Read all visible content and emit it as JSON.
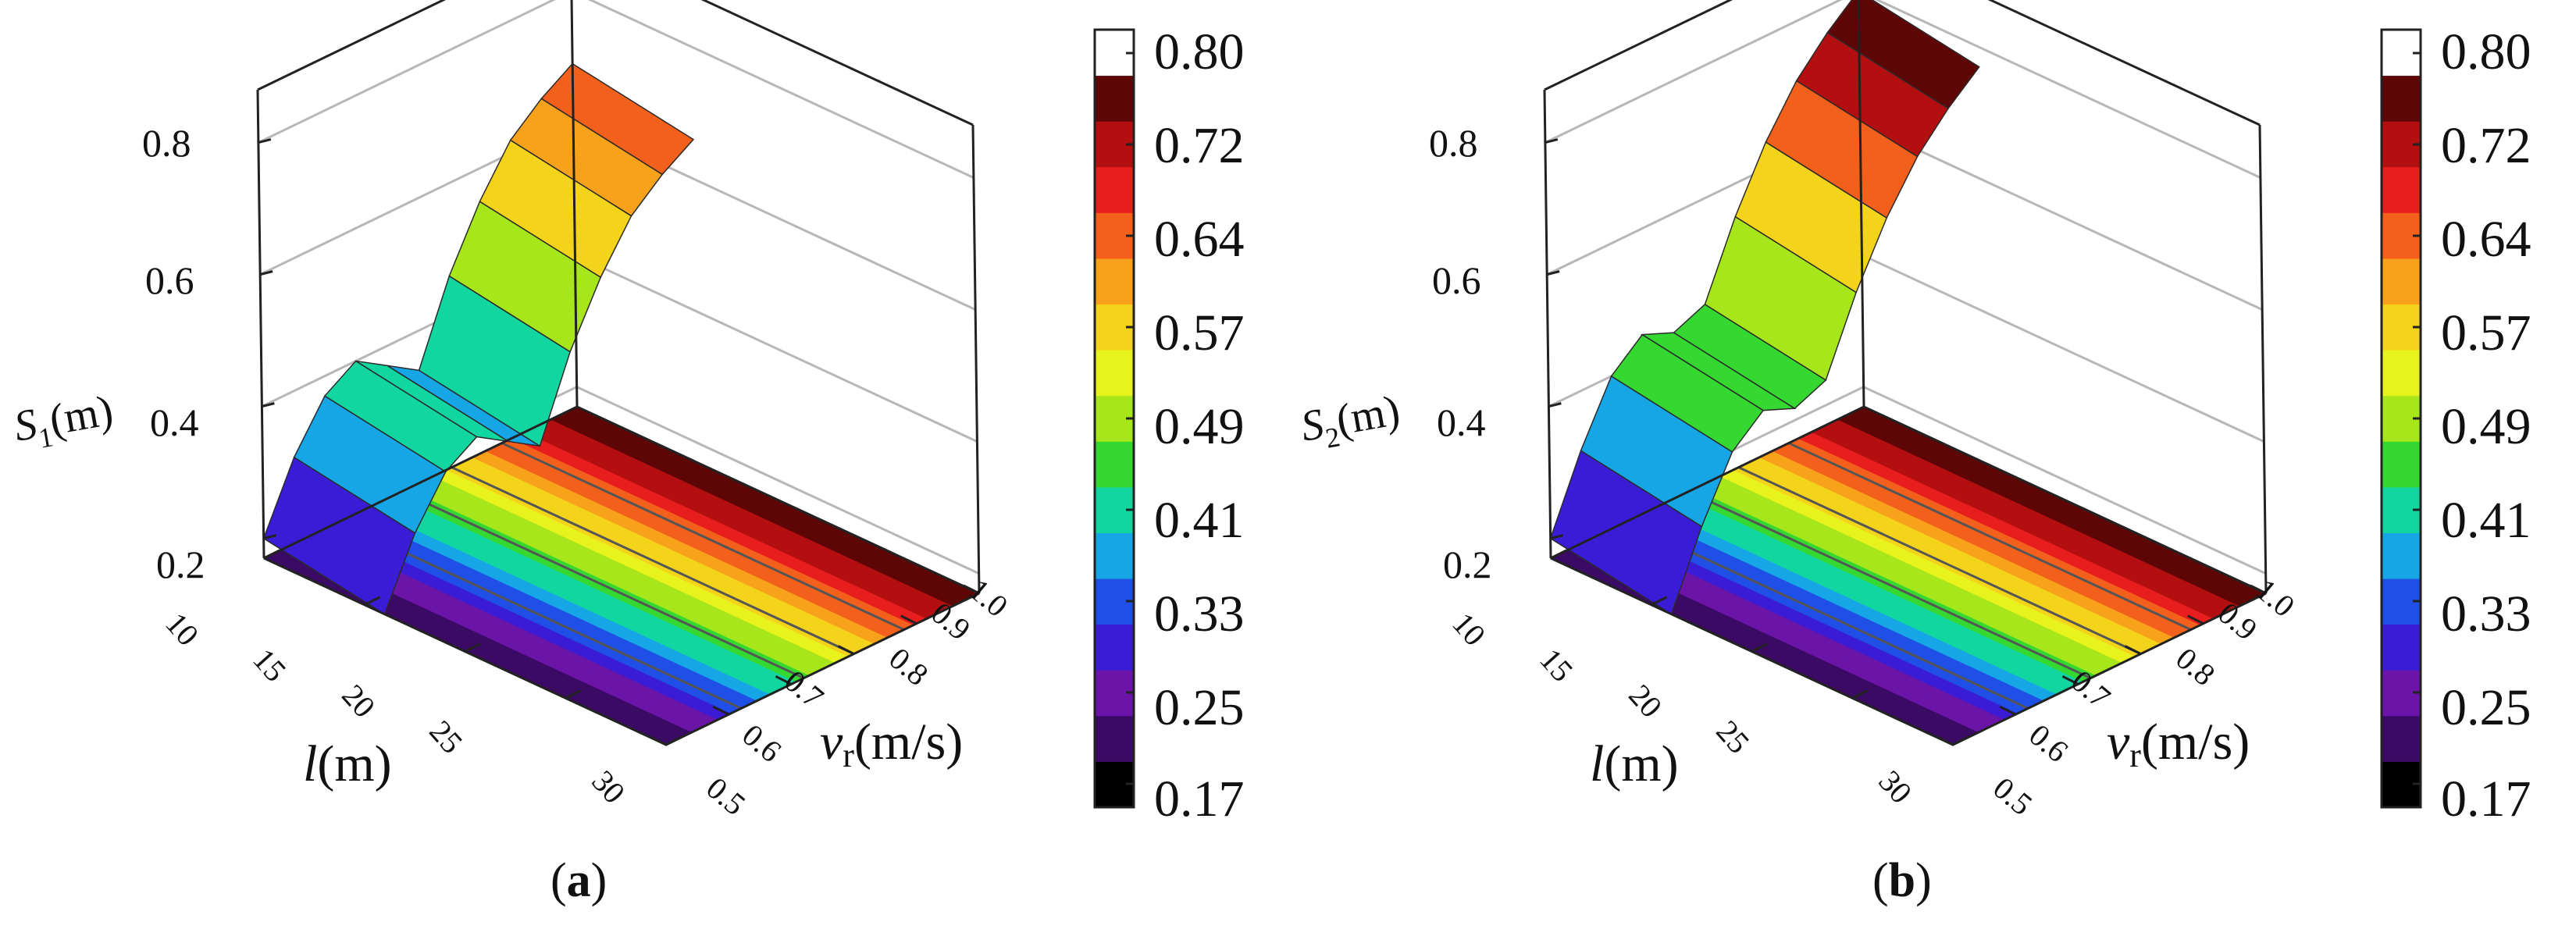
{
  "colors": {
    "colormap": [
      "#000000",
      "#3b0a64",
      "#6a15a8",
      "#3a1cd6",
      "#1f4fe6",
      "#16a6e6",
      "#12d6a0",
      "#35d830",
      "#a6e61a",
      "#e8f21c",
      "#f4d41a",
      "#f7a21a",
      "#f2601c",
      "#e81d1d",
      "#b40f10",
      "#5e0606",
      "#ffffff"
    ],
    "wireframe": "#2a2a2a",
    "grid": "#b7b7b7",
    "contour": "#555555"
  },
  "chart_data": [
    {
      "type": "surface",
      "panel_label": "(a)",
      "zlabel": "S",
      "zlabel_sub": "1",
      "zlabel_unit": "(m)",
      "xlabel": "l",
      "xlabel_unit": "(m)",
      "ylabel": "v",
      "ylabel_sub": "r",
      "ylabel_unit": "(m/s)",
      "z_ticks": [
        "0.2",
        "0.4",
        "0.6",
        "0.8"
      ],
      "l_ticks": [
        "10",
        "15",
        "20",
        "25",
        "30"
      ],
      "v_ticks": [
        "0.5",
        "0.6",
        "0.7",
        "0.8",
        "0.9",
        "1.0"
      ],
      "zlim": [
        0.17,
        0.88
      ],
      "l_range": [
        10,
        30
      ],
      "v_range": [
        0.5,
        1.0
      ],
      "surface_profile": {
        "v": [
          0.5,
          0.55,
          0.6,
          0.65,
          0.7,
          0.75,
          0.8,
          0.85,
          0.9,
          0.95,
          1.0
        ],
        "s": [
          0.2,
          0.3,
          0.37,
          0.4,
          0.37,
          0.34,
          0.46,
          0.55,
          0.62,
          0.66,
          0.69
        ]
      },
      "colorbar": {
        "ticks": [
          "0.80",
          "0.72",
          "0.64",
          "0.57",
          "0.49",
          "0.41",
          "0.33",
          "0.25",
          "0.17"
        ],
        "min": 0.17,
        "max": 0.8
      }
    },
    {
      "type": "surface",
      "panel_label": "(b)",
      "zlabel": "S",
      "zlabel_sub": "2",
      "zlabel_unit": "(m)",
      "xlabel": "l",
      "xlabel_unit": "(m)",
      "ylabel": "v",
      "ylabel_sub": "r",
      "ylabel_unit": "(m/s)",
      "z_ticks": [
        "0.2",
        "0.4",
        "0.6",
        "0.8"
      ],
      "l_ticks": [
        "10",
        "15",
        "20",
        "25",
        "30"
      ],
      "v_ticks": [
        "0.5",
        "0.6",
        "0.7",
        "0.8",
        "0.9",
        "1.0"
      ],
      "zlim": [
        0.17,
        0.88
      ],
      "l_range": [
        10,
        30
      ],
      "v_range": [
        0.5,
        1.0
      ],
      "surface_profile": {
        "v": [
          0.5,
          0.55,
          0.6,
          0.65,
          0.7,
          0.75,
          0.8,
          0.85,
          0.9,
          0.95,
          1.0
        ],
        "s": [
          0.2,
          0.31,
          0.4,
          0.44,
          0.42,
          0.44,
          0.55,
          0.64,
          0.71,
          0.76,
          0.8
        ]
      },
      "colorbar": {
        "ticks": [
          "0.80",
          "0.72",
          "0.64",
          "0.57",
          "0.49",
          "0.41",
          "0.33",
          "0.25",
          "0.17"
        ],
        "min": 0.17,
        "max": 0.8
      }
    }
  ]
}
